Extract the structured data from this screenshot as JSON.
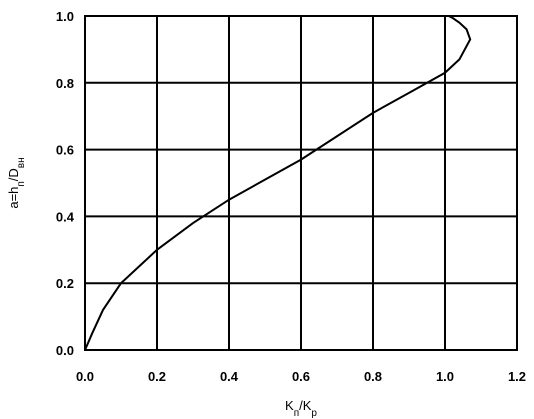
{
  "chart_data": {
    "type": "line",
    "title": "",
    "xlabel": "K_п/K_р",
    "ylabel": "a=h_п/D_вн",
    "xlim": [
      0.0,
      1.2
    ],
    "ylim": [
      0.0,
      1.0
    ],
    "grid": true,
    "x_ticks": [
      "0.0",
      "0.2",
      "0.4",
      "0.6",
      "0.8",
      "1.0",
      "1.2"
    ],
    "y_ticks": [
      "0.0",
      "0.2",
      "0.4",
      "0.6",
      "0.8",
      "1.0"
    ],
    "colors": {
      "line": "#000000",
      "grid": "#000000",
      "background": "#ffffff"
    },
    "series": [
      {
        "x": [
          0.0,
          0.02,
          0.05,
          0.1,
          0.15,
          0.2,
          0.3,
          0.4,
          0.5,
          0.6,
          0.7,
          0.8,
          0.9,
          1.0,
          1.04,
          1.07,
          1.06,
          1.04,
          1.02,
          1.01
        ],
        "y": [
          0.0,
          0.05,
          0.12,
          0.2,
          0.25,
          0.3,
          0.38,
          0.45,
          0.51,
          0.57,
          0.64,
          0.71,
          0.77,
          0.83,
          0.87,
          0.93,
          0.96,
          0.98,
          0.995,
          1.0
        ]
      }
    ]
  }
}
